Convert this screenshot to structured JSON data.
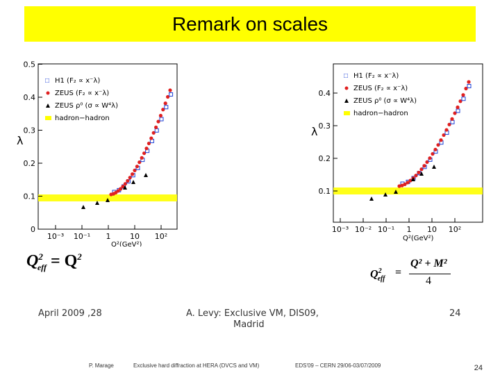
{
  "title": "Remark on scales",
  "left_plot": {
    "y_ticks": [
      "0",
      "0.1",
      "0.2",
      "0.3",
      "0.4",
      "0.5"
    ],
    "x_ticks": [
      "10⁻³",
      "10⁻¹",
      "1",
      "10",
      "10²"
    ],
    "ylabel": "λ",
    "xlabel": "Q²(GeV²)",
    "legend": [
      "H1 (F₂ ∝ x⁻λ)",
      "ZEUS (F₂ ∝ x⁻λ)",
      "ZEUS ρ⁰ (σ ∝ W⁴λ)",
      "hadron−hadron"
    ]
  },
  "right_plot": {
    "y_ticks": [
      "0.1",
      "0.2",
      "0.3",
      "0.4"
    ],
    "x_ticks": [
      "10⁻³",
      "10⁻²",
      "10⁻¹",
      "1",
      "10",
      "10²"
    ],
    "ylabel": "λ",
    "xlabel": "Q²(GeV²)",
    "legend": [
      "H1 (F₂ ∝ x⁻λ)",
      "ZEUS (F₂ ∝ x⁻λ)",
      "ZEUS ρ⁰ (σ ∝ W⁴λ)",
      "hadron−hadron"
    ]
  },
  "colors": {
    "title_bg": "#ffff00",
    "band": "#ffff00",
    "h1": "#1a3fd6",
    "zeus": "#e02020",
    "rho": "#000000"
  },
  "equations": {
    "left": {
      "lhs": "Q",
      "lhs_sub": "eff",
      "sup": "2",
      "rhs": "= Q",
      "rhs_sup": "2"
    },
    "right": {
      "lhs": "Q",
      "lhs_sub": "eff",
      "sup": "2",
      "eq": "=",
      "num": "Q² + M²",
      "den": "4"
    }
  },
  "inner_footer": {
    "date": "April 2009 ,28",
    "author_line1": "A. Levy: Exclusive VM, DIS09,",
    "author_line2": "Madrid",
    "page": "24"
  },
  "footer": {
    "author": "P. Marage",
    "talk": "Exclusive hard diffraction at HERA (DVCS and VM)",
    "conference": "EDS'09 – CERN 29/06-03/07/2009",
    "page": "24"
  }
}
